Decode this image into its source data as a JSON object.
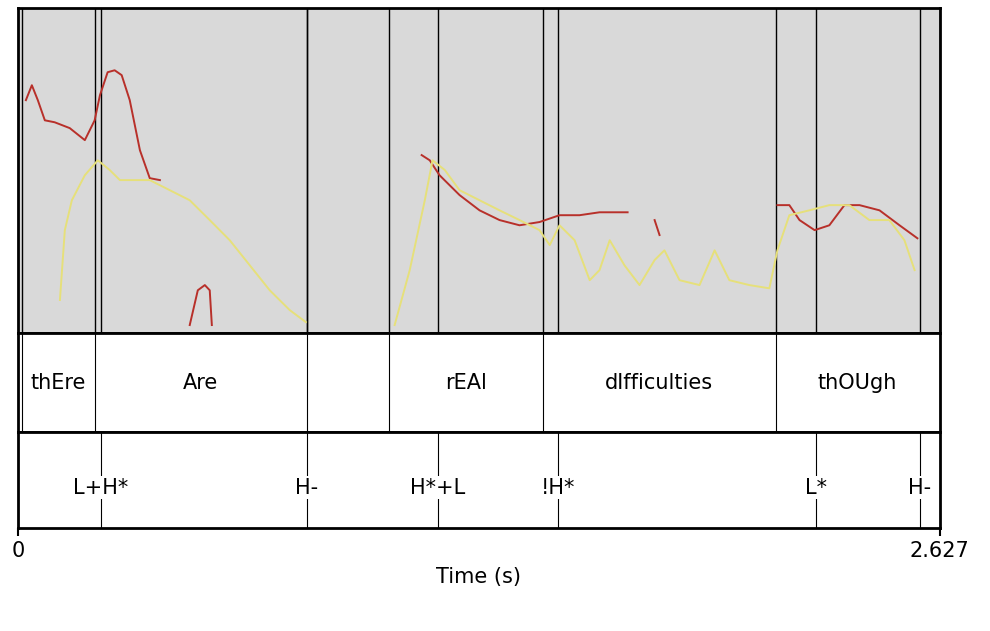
{
  "chart_data": {
    "type": "line",
    "xlabel": "Time (s)",
    "xlim": [
      0,
      2.627
    ],
    "xticks": [
      0,
      2.627
    ],
    "ylim": [
      0,
      100
    ],
    "tick_labels": "x",
    "series": [
      {
        "color": "#b8302a",
        "x": [
          0.023,
          0.04,
          0.057,
          0.077,
          0.105,
          0.148,
          0.191,
          0.219,
          0.234,
          0.256,
          0.276,
          0.296,
          0.319,
          0.348,
          0.376,
          0.405,
          0.45,
          0.49,
          0.513,
          0.533,
          0.547,
          0.553,
          0.9,
          1.151,
          1.174,
          1.202,
          1.259,
          1.316,
          1.373,
          1.43,
          1.487,
          1.544,
          1.601,
          1.658,
          1.738,
          1.78,
          1.815,
          1.829,
          2.0,
          2.165,
          2.199,
          2.228,
          2.271,
          2.313,
          2.356,
          2.399,
          2.456,
          2.513,
          2.564
        ],
        "values": [
          71.7,
          76.3,
          71.7,
          65.5,
          64.9,
          63.1,
          59.4,
          65.5,
          73.2,
          80.3,
          80.9,
          79.4,
          71.7,
          56.3,
          47.7,
          47.1,
          null,
          2.5,
          13.2,
          14.8,
          13.2,
          2.5,
          null,
          54.8,
          53.2,
          48.6,
          42.5,
          37.8,
          34.8,
          33.2,
          34.2,
          36.3,
          36.3,
          37.2,
          37.2,
          null,
          34.8,
          30.2,
          null,
          39.4,
          39.4,
          34.8,
          31.7,
          33.2,
          39.4,
          39.4,
          37.8,
          33.2,
          29.2
        ]
      },
      {
        "color": "#e6e07a",
        "x": [
          0.12,
          0.134,
          0.154,
          0.191,
          0.228,
          0.262,
          0.291,
          0.333,
          0.376,
          0.433,
          0.49,
          0.547,
          0.604,
          0.661,
          0.718,
          0.775,
          0.821,
          1.0,
          1.074,
          1.117,
          1.16,
          1.182,
          1.217,
          1.259,
          1.316,
          1.373,
          1.43,
          1.487,
          1.516,
          1.544,
          1.587,
          1.63,
          1.658,
          1.687,
          1.729,
          1.772,
          1.815,
          1.843,
          1.886,
          1.943,
          1.986,
          2.028,
          2.085,
          2.142,
          2.165,
          2.199,
          2.256,
          2.313,
          2.37,
          2.427,
          2.484,
          2.527,
          2.556
        ],
        "values": [
          10.2,
          31.7,
          40.9,
          48.6,
          53.2,
          50.2,
          47.1,
          47.1,
          47.1,
          44.0,
          40.9,
          34.8,
          28.6,
          20.9,
          13.2,
          7.1,
          3.4,
          null,
          2.5,
          19.4,
          40.9,
          53.2,
          50.2,
          44.0,
          40.9,
          37.8,
          34.8,
          31.7,
          27.1,
          33.2,
          28.6,
          16.3,
          19.4,
          28.6,
          20.9,
          14.8,
          22.5,
          25.5,
          16.3,
          14.8,
          25.5,
          16.3,
          14.8,
          13.8,
          25.5,
          36.3,
          37.8,
          39.4,
          39.4,
          34.8,
          34.8,
          28.6,
          19.4
        ]
      }
    ],
    "words": {
      "boundaries": [
        0.011,
        0.219,
        0.823,
        1.057,
        1.496,
        2.16,
        2.627
      ],
      "labels": [
        "thEre",
        "Are",
        null,
        "rEAl",
        "dIfficulties",
        "thOUgh"
      ]
    },
    "tones": {
      "times": [
        0.236,
        0.823,
        1.197,
        1.541,
        2.276,
        2.57
      ],
      "labels": [
        "L+H*",
        "H-",
        "H*+L",
        "!H*",
        "L*",
        "H-"
      ]
    }
  }
}
